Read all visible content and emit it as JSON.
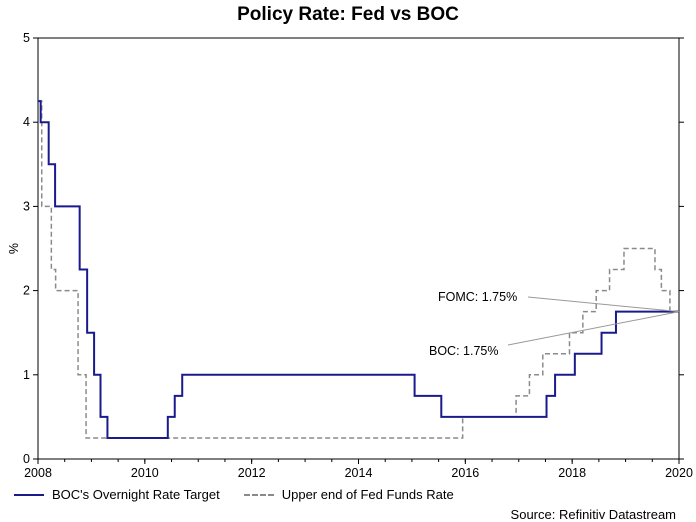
{
  "chart_data": {
    "type": "line",
    "title": "Policy Rate: Fed vs BOC",
    "ylabel": "%",
    "xlabel": "",
    "xlim": [
      2008,
      2020
    ],
    "ylim": [
      0,
      5
    ],
    "x_ticks": [
      "2008",
      "2010",
      "2012",
      "2014",
      "2016",
      "2018",
      "2020"
    ],
    "y_ticks": [
      "0",
      "1",
      "2",
      "3",
      "4",
      "5"
    ],
    "grid": false,
    "legend_position": "bottom",
    "series": [
      {
        "name": "BOC's Overnight Rate Target",
        "color": "#1a1a8c",
        "style": "solid-step",
        "points": [
          [
            2008.0,
            4.25
          ],
          [
            2008.05,
            4.0
          ],
          [
            2008.2,
            3.5
          ],
          [
            2008.32,
            3.0
          ],
          [
            2008.78,
            2.25
          ],
          [
            2008.92,
            1.5
          ],
          [
            2009.05,
            1.0
          ],
          [
            2009.17,
            0.5
          ],
          [
            2009.3,
            0.25
          ],
          [
            2010.43,
            0.5
          ],
          [
            2010.56,
            0.75
          ],
          [
            2010.7,
            1.0
          ],
          [
            2015.05,
            0.75
          ],
          [
            2015.55,
            0.5
          ],
          [
            2017.52,
            0.75
          ],
          [
            2017.68,
            1.0
          ],
          [
            2018.05,
            1.25
          ],
          [
            2018.55,
            1.5
          ],
          [
            2018.82,
            1.75
          ],
          [
            2020.0,
            1.75
          ]
        ]
      },
      {
        "name": "Upper end of Fed Funds Rate",
        "color": "#8a8a8a",
        "style": "dashed-step",
        "points": [
          [
            2008.0,
            4.25
          ],
          [
            2008.07,
            3.0
          ],
          [
            2008.25,
            2.25
          ],
          [
            2008.33,
            2.0
          ],
          [
            2008.75,
            1.0
          ],
          [
            2008.9,
            0.25
          ],
          [
            2015.95,
            0.5
          ],
          [
            2016.95,
            0.75
          ],
          [
            2017.2,
            1.0
          ],
          [
            2017.45,
            1.25
          ],
          [
            2017.95,
            1.5
          ],
          [
            2018.2,
            1.75
          ],
          [
            2018.45,
            2.0
          ],
          [
            2018.7,
            2.25
          ],
          [
            2018.97,
            2.5
          ],
          [
            2019.55,
            2.25
          ],
          [
            2019.67,
            2.0
          ],
          [
            2019.83,
            1.75
          ],
          [
            2020.0,
            1.75
          ]
        ]
      }
    ],
    "annotations": [
      {
        "label": "FOMC: 1.75%",
        "point": [
          2020.0,
          1.75
        ]
      },
      {
        "label": "BOC: 1.75%",
        "point": [
          2020.0,
          1.75
        ]
      }
    ],
    "source": "Source: Refinitiv Datastream"
  }
}
